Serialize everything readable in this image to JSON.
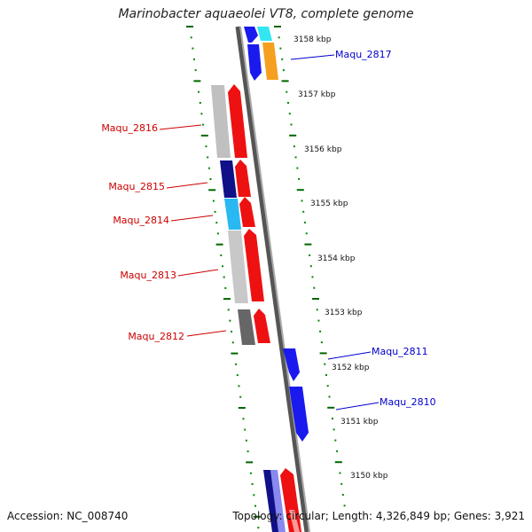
{
  "title": "Marinobacter aquaeolei VT8, complete genome",
  "footer": {
    "accession": "Accession: NC_008740",
    "topology": "Topology: circular; Length: 4,326,849 bp; Genes: 3,921"
  },
  "colors": {
    "forward_label": "#0000cc",
    "reverse_label": "#cc0000",
    "tick_outer": "#006600",
    "tick_inner": "#008800",
    "backbone": "#777777"
  },
  "scale_labels": [
    "3158 kbp",
    "3157 kbp",
    "3156 kbp",
    "3155 kbp",
    "3154 kbp",
    "3153 kbp",
    "3152 kbp",
    "3151 kbp",
    "3150 kbp"
  ],
  "gene_labels": {
    "Maqu_2817": "Maqu_2817",
    "Maqu_2816": "Maqu_2816",
    "Maqu_2815": "Maqu_2815",
    "Maqu_2814": "Maqu_2814",
    "Maqu_2813": "Maqu_2813",
    "Maqu_2812": "Maqu_2812",
    "Maqu_2811": "Maqu_2811",
    "Maqu_2810": "Maqu_2810"
  }
}
